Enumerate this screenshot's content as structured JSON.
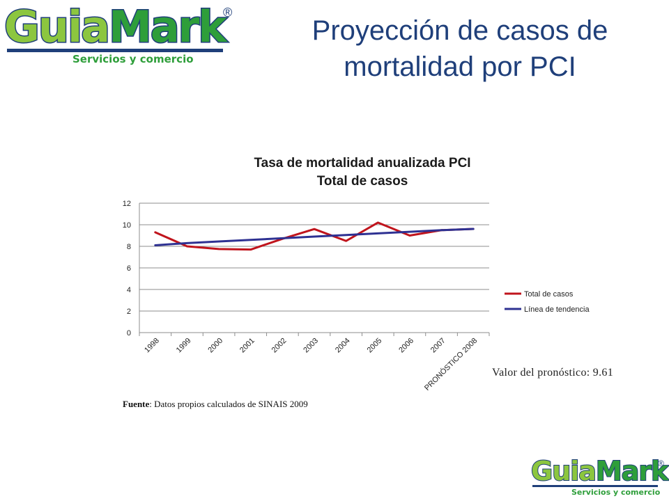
{
  "logo": {
    "word_part1": "Guia",
    "word_part2": "Mark",
    "registered": "®",
    "tagline": "Servicios y comercio"
  },
  "slide": {
    "title_line1": "Proyección de casos de",
    "title_line2": "mortalidad por PCI",
    "forecast_text": "Valor del pronóstico: 9.61",
    "source_label": "Fuente",
    "source_text": ": Datos propios calculados de SINAIS 2009"
  },
  "colors": {
    "title": "#1f3f7a",
    "series_total": "#c0141c",
    "series_trend": "#2e3192",
    "grid": "#8c8c8c",
    "logo_light_green": "#8cc63f",
    "logo_green": "#2e9e3a",
    "logo_navy": "#1f3f7a"
  },
  "chart_data": {
    "type": "line",
    "title_line1": "Tasa de mortalidad anualizada PCI",
    "title_line2": "Total de casos",
    "categories": [
      "1998",
      "1999",
      "2000",
      "2001",
      "2002",
      "2003",
      "2004",
      "2005",
      "2006",
      "2007",
      "PRONÓSTICO 2008"
    ],
    "series": [
      {
        "name": "Total de casos",
        "values": [
          9.3,
          8.0,
          7.75,
          7.7,
          8.7,
          9.6,
          8.5,
          10.2,
          9.0,
          9.5,
          9.61
        ]
      },
      {
        "name": "Línea de tendencia",
        "values": [
          8.1,
          8.3,
          8.45,
          8.6,
          8.75,
          8.9,
          9.05,
          9.2,
          9.35,
          9.5,
          9.61
        ]
      }
    ],
    "ylim": [
      0,
      12
    ],
    "yticks": [
      0,
      2,
      4,
      6,
      8,
      10,
      12
    ],
    "grid": true,
    "legend_position": "right"
  }
}
